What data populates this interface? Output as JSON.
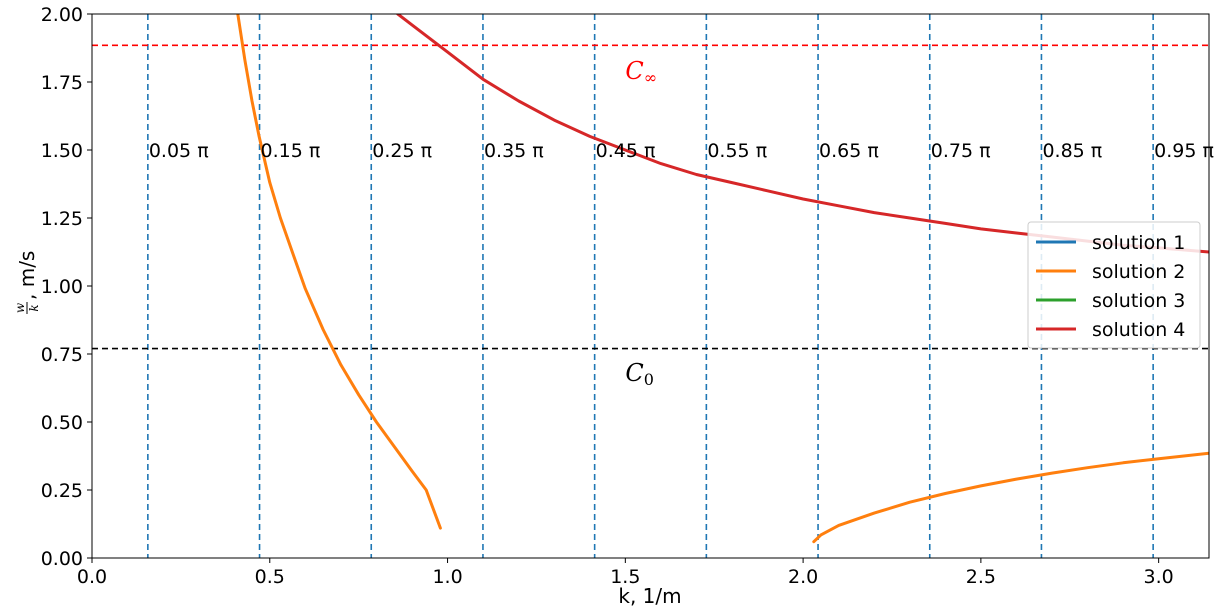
{
  "chart_data": {
    "type": "line",
    "xlabel": "k, 1/m",
    "ylabel_frac_num": "w",
    "ylabel_frac_den": "k",
    "ylabel_suffix": ", m/s",
    "xlim": [
      0.0,
      3.1416
    ],
    "ylim": [
      0.0,
      2.0
    ],
    "xticks": [
      0.0,
      0.5,
      1.0,
      1.5,
      2.0,
      2.5,
      3.0
    ],
    "xtick_labels": [
      "0.0",
      "0.5",
      "1.0",
      "1.5",
      "2.0",
      "2.5",
      "3.0"
    ],
    "yticks": [
      0.0,
      0.25,
      0.5,
      0.75,
      1.0,
      1.25,
      1.5,
      1.75,
      2.0
    ],
    "ytick_labels": [
      "0.00",
      "0.25",
      "0.50",
      "0.75",
      "1.00",
      "1.25",
      "1.50",
      "1.75",
      "2.00"
    ],
    "grid": false,
    "legend_position": "right",
    "series": [
      {
        "name": "solution 1",
        "color": "#1f77b4",
        "x": [],
        "y": []
      },
      {
        "name": "solution 2",
        "color": "#ff7f0e",
        "segments": [
          {
            "x": [
              0.41,
              0.43,
              0.45,
              0.47,
              0.5,
              0.53,
              0.57,
              0.6,
              0.65,
              0.7,
              0.75,
              0.8,
              0.85,
              0.9,
              0.94,
              0.98
            ],
            "y": [
              2.0,
              1.83,
              1.68,
              1.55,
              1.38,
              1.25,
              1.1,
              0.99,
              0.84,
              0.71,
              0.6,
              0.5,
              0.41,
              0.32,
              0.25,
              0.11
            ]
          },
          {
            "x": [
              2.03,
              2.05,
              2.1,
              2.2,
              2.3,
              2.4,
              2.5,
              2.6,
              2.7,
              2.8,
              2.9,
              3.0,
              3.1416
            ],
            "y": [
              0.06,
              0.085,
              0.12,
              0.165,
              0.205,
              0.237,
              0.265,
              0.29,
              0.312,
              0.332,
              0.35,
              0.365,
              0.385
            ]
          }
        ]
      },
      {
        "name": "solution 3",
        "color": "#2ca02c",
        "x": [],
        "y": []
      },
      {
        "name": "solution 4",
        "color": "#d62728",
        "x": [
          0.86,
          0.9,
          1.0,
          1.1,
          1.2,
          1.3,
          1.4,
          1.5,
          1.6,
          1.7,
          1.8,
          1.9,
          2.0,
          2.1,
          2.2,
          2.3,
          2.4,
          2.5,
          2.6,
          2.7,
          2.8,
          2.9,
          3.0,
          3.1416
        ],
        "y": [
          2.0,
          1.96,
          1.86,
          1.76,
          1.68,
          1.61,
          1.55,
          1.5,
          1.45,
          1.41,
          1.38,
          1.35,
          1.32,
          1.295,
          1.27,
          1.25,
          1.23,
          1.21,
          1.195,
          1.18,
          1.165,
          1.15,
          1.14,
          1.125
        ]
      }
    ],
    "hlines": [
      {
        "name": "C∞",
        "y": 1.885,
        "color": "#ff0000",
        "label_main": "C",
        "label_sub": "∞",
        "label_x": 1.5,
        "label_y": 1.79
      },
      {
        "name": "C0",
        "y": 0.77,
        "color": "#000000",
        "label_main": "C",
        "label_sub": "0",
        "label_x": 1.5,
        "label_y": 0.68
      }
    ],
    "vlines": {
      "color": "#1f77b4",
      "x": [
        0.15708,
        0.47124,
        0.7854,
        1.09956,
        1.41372,
        1.72788,
        2.04204,
        2.35619,
        2.67035,
        2.98451
      ],
      "labels": [
        "0.05 π",
        "0.15 π",
        "0.25 π",
        "0.35 π",
        "0.45 π",
        "0.55 π",
        "0.65 π",
        "0.75 π",
        "0.85 π",
        "0.95 π"
      ],
      "label_y": 1.5
    }
  }
}
